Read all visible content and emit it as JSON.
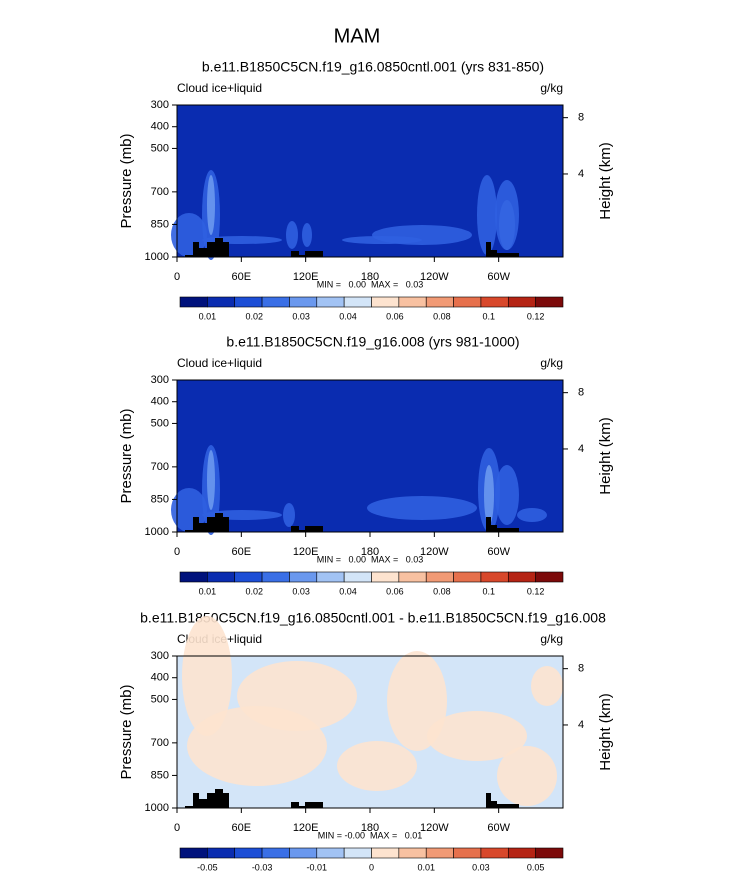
{
  "title": "MAM",
  "chart_data": [
    {
      "type": "contour",
      "title": "b.e11.B1850C5CN.f19_g16.0850cntl.001 (yrs 831-850)",
      "left_label": "Cloud ice+liquid",
      "right_label": "g/kg",
      "ylabel": "Pressure (mb)",
      "y2label": "Height (km)",
      "xlim": [
        0,
        360
      ],
      "xticks": [
        0,
        {
          "value": 60,
          "label": "60E"
        },
        {
          "value": 120,
          "label": "120E"
        },
        180,
        {
          "value": 240,
          "label": "120W"
        },
        {
          "value": 300,
          "label": "60W"
        }
      ],
      "ylim": [
        1000,
        300
      ],
      "yticks": [
        300,
        400,
        500,
        700,
        850,
        1000
      ],
      "y2lim": [
        -1.9,
        8.9
      ],
      "y2ticks": [
        4,
        8
      ],
      "stats": "MIN =   0.00  MAX =   0.03",
      "colorbar": {
        "colors": [
          "#00127c",
          "#0a2cb0",
          "#1c4ed6",
          "#3a6fe6",
          "#6a98ee",
          "#a2c3f4",
          "#d3e5f8",
          "#fde3cf",
          "#f8c1a1",
          "#f19a75",
          "#e6704c",
          "#d8482b",
          "#b52414",
          "#7c0a0a"
        ],
        "ticks": [
          0.01,
          0.02,
          0.03,
          0.04,
          0.06,
          0.08,
          0.1,
          0.12
        ]
      }
    },
    {
      "type": "contour",
      "title": "b.e11.B1850C5CN.f19_g16.008 (yrs 981-1000)",
      "left_label": "Cloud ice+liquid",
      "right_label": "g/kg",
      "ylabel": "Pressure (mb)",
      "y2label": "Height (km)",
      "xlim": [
        0,
        360
      ],
      "xticks": [
        0,
        {
          "value": 60,
          "label": "60E"
        },
        {
          "value": 120,
          "label": "120E"
        },
        180,
        {
          "value": 240,
          "label": "120W"
        },
        {
          "value": 300,
          "label": "60W"
        }
      ],
      "ylim": [
        1000,
        300
      ],
      "yticks": [
        300,
        400,
        500,
        700,
        850,
        1000
      ],
      "y2lim": [
        -1.9,
        8.9
      ],
      "y2ticks": [
        4,
        8
      ],
      "stats": "MIN =   0.00  MAX =   0.03",
      "colorbar": {
        "colors": [
          "#00127c",
          "#0a2cb0",
          "#1c4ed6",
          "#3a6fe6",
          "#6a98ee",
          "#a2c3f4",
          "#d3e5f8",
          "#fde3cf",
          "#f8c1a1",
          "#f19a75",
          "#e6704c",
          "#d8482b",
          "#b52414",
          "#7c0a0a"
        ],
        "ticks": [
          0.01,
          0.02,
          0.03,
          0.04,
          0.06,
          0.08,
          0.1,
          0.12
        ]
      }
    },
    {
      "type": "contour",
      "title": "b.e11.B1850C5CN.f19_g16.0850cntl.001 - b.e11.B1850C5CN.f19_g16.008",
      "left_label": "Cloud ice+liquid",
      "right_label": "g/kg",
      "ylabel": "Pressure (mb)",
      "y2label": "Height (km)",
      "xlim": [
        0,
        360
      ],
      "xticks": [
        0,
        {
          "value": 60,
          "label": "60E"
        },
        {
          "value": 120,
          "label": "120E"
        },
        180,
        {
          "value": 240,
          "label": "120W"
        },
        {
          "value": 300,
          "label": "60W"
        }
      ],
      "ylim": [
        1000,
        300
      ],
      "yticks": [
        300,
        400,
        500,
        700,
        850,
        1000
      ],
      "y2lim": [
        -1.9,
        8.9
      ],
      "y2ticks": [
        4,
        8
      ],
      "stats": "MIN = -0.00  MAX =   0.01",
      "colorbar": {
        "colors": [
          "#00127c",
          "#0a2cb0",
          "#1c4ed6",
          "#3a6fe6",
          "#6a98ee",
          "#a2c3f4",
          "#d3e5f8",
          "#fde3cf",
          "#f8c1a1",
          "#f19a75",
          "#e6704c",
          "#d8482b",
          "#b52414",
          "#7c0a0a"
        ],
        "ticks": [
          -0.05,
          -0.03,
          -0.01,
          0,
          0.01,
          0.03,
          0.05
        ]
      }
    }
  ]
}
